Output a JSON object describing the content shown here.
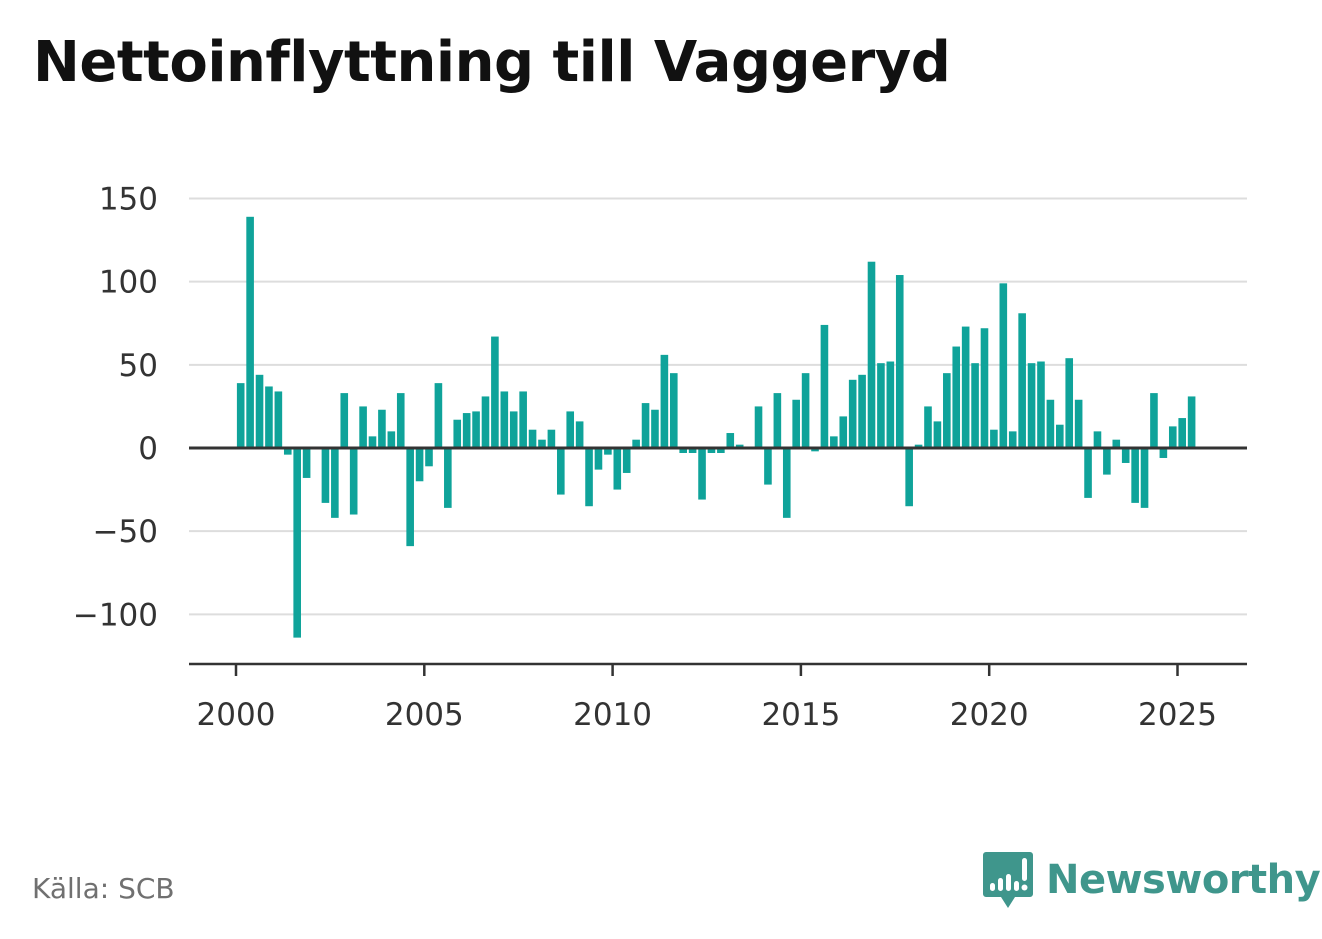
{
  "title": "Nettoinflyttning till Vaggeryd",
  "source": "Källa: SCB",
  "brand": {
    "name": "Newsworthy",
    "logo_icon": "bar-chart-speech-bubble-icon",
    "color": "#3f968c"
  },
  "colors": {
    "bar": "#0fa39a",
    "zero_line": "#333333",
    "grid": "#dddddd",
    "axis": "#333333"
  },
  "chart_data": {
    "type": "bar",
    "title": "Nettoinflyttning till Vaggeryd",
    "xlabel": "",
    "ylabel": "",
    "ylim": [
      -130,
      160
    ],
    "y_ticks": [
      150,
      100,
      50,
      0,
      -50,
      -100
    ],
    "y_tick_labels": [
      "150",
      "100",
      "50",
      "0",
      "−50",
      "−100"
    ],
    "x_ticks": [
      2000,
      2005,
      2010,
      2015,
      2020,
      2025
    ],
    "x_tick_labels": [
      "2000",
      "2005",
      "2010",
      "2015",
      "2020",
      "2025"
    ],
    "grid": true,
    "frequency": "quarterly",
    "start": "2000 Q1",
    "x": [
      "2000 Q1",
      "2000 Q2",
      "2000 Q3",
      "2000 Q4",
      "2001 Q1",
      "2001 Q2",
      "2001 Q3",
      "2001 Q4",
      "2002 Q1",
      "2002 Q2",
      "2002 Q3",
      "2002 Q4",
      "2003 Q1",
      "2003 Q2",
      "2003 Q3",
      "2003 Q4",
      "2004 Q1",
      "2004 Q2",
      "2004 Q3",
      "2004 Q4",
      "2005 Q1",
      "2005 Q2",
      "2005 Q3",
      "2005 Q4",
      "2006 Q1",
      "2006 Q2",
      "2006 Q3",
      "2006 Q4",
      "2007 Q1",
      "2007 Q2",
      "2007 Q3",
      "2007 Q4",
      "2008 Q1",
      "2008 Q2",
      "2008 Q3",
      "2008 Q4",
      "2009 Q1",
      "2009 Q2",
      "2009 Q3",
      "2009 Q4",
      "2010 Q1",
      "2010 Q2",
      "2010 Q3",
      "2010 Q4",
      "2011 Q1",
      "2011 Q2",
      "2011 Q3",
      "2011 Q4",
      "2012 Q1",
      "2012 Q2",
      "2012 Q3",
      "2012 Q4",
      "2013 Q1",
      "2013 Q2",
      "2013 Q3",
      "2013 Q4",
      "2014 Q1",
      "2014 Q2",
      "2014 Q3",
      "2014 Q4",
      "2015 Q1",
      "2015 Q2",
      "2015 Q3",
      "2015 Q4",
      "2016 Q1",
      "2016 Q2",
      "2016 Q3",
      "2016 Q4",
      "2017 Q1",
      "2017 Q2",
      "2017 Q3",
      "2017 Q4",
      "2018 Q1",
      "2018 Q2",
      "2018 Q3",
      "2018 Q4",
      "2019 Q1",
      "2019 Q2",
      "2019 Q3",
      "2019 Q4",
      "2020 Q1",
      "2020 Q2",
      "2020 Q3",
      "2020 Q4",
      "2021 Q1",
      "2021 Q2",
      "2021 Q3",
      "2021 Q4",
      "2022 Q1",
      "2022 Q2",
      "2022 Q3",
      "2022 Q4",
      "2023 Q1",
      "2023 Q2",
      "2023 Q3",
      "2023 Q4",
      "2024 Q1",
      "2024 Q2",
      "2024 Q3",
      "2024 Q4",
      "2025 Q1",
      "2025 Q2"
    ],
    "values": [
      39,
      139,
      44,
      37,
      34,
      -4,
      -114,
      -18,
      null,
      -33,
      -42,
      33,
      -40,
      25,
      7,
      23,
      10,
      33,
      -59,
      -20,
      -11,
      39,
      -36,
      17,
      21,
      22,
      31,
      67,
      34,
      22,
      34,
      11,
      5,
      11,
      -28,
      22,
      16,
      -35,
      -13,
      -4,
      -25,
      -15,
      5,
      27,
      23,
      56,
      45,
      -3,
      -3,
      -31,
      -3,
      -3,
      9,
      2,
      null,
      25,
      -22,
      33,
      -42,
      29,
      45,
      -2,
      74,
      7,
      19,
      41,
      44,
      112,
      51,
      52,
      104,
      -35,
      2,
      25,
      16,
      45,
      61,
      73,
      51,
      72,
      11,
      99,
      10,
      81,
      51,
      52,
      29,
      14,
      54,
      29,
      -30,
      10,
      -16,
      5,
      -9,
      -33,
      -36,
      33,
      -6,
      13,
      18,
      31
    ]
  }
}
